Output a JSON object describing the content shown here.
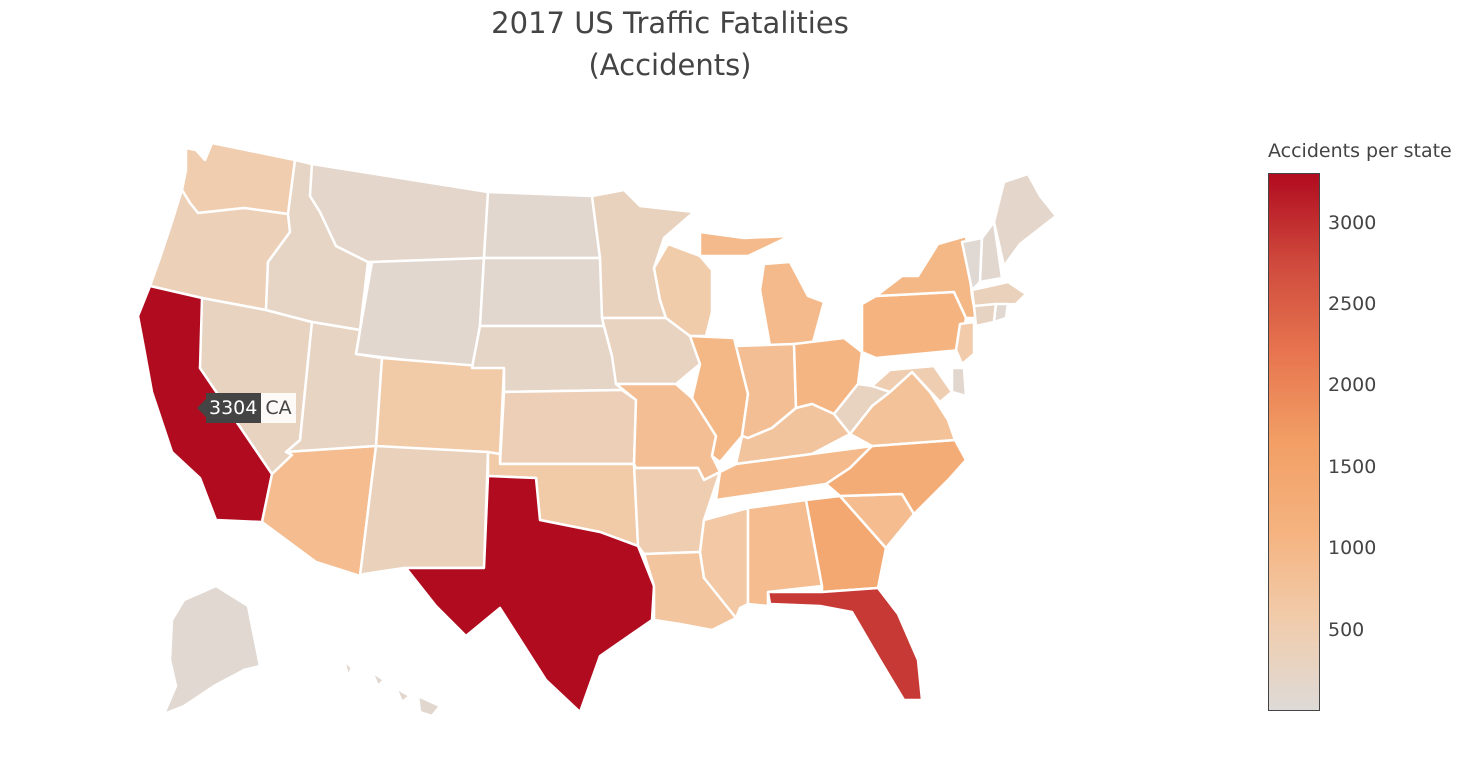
{
  "title": {
    "line1": "2017 US Traffic Fatalities",
    "line2": "(Accidents)"
  },
  "colorbar": {
    "title": "Accidents per state",
    "min": 0,
    "max": 3304,
    "ticks": [
      "500",
      "1000",
      "1500",
      "2000",
      "2500",
      "3000"
    ],
    "colors": [
      "#dedad7",
      "#f1ccac",
      "#f5b37f",
      "#f29f65",
      "#e7754f",
      "#cf4a3d",
      "#b10b1f"
    ]
  },
  "tooltip": {
    "value": "3304",
    "state": "CA"
  },
  "chart_data": {
    "type": "choropleth",
    "title": "2017 US Traffic Fatalities (Accidents)",
    "colorbar_title": "Accidents per state",
    "states": [
      {
        "code": "WA",
        "value": 520
      },
      {
        "code": "OR",
        "value": 400
      },
      {
        "code": "CA",
        "value": 3304
      },
      {
        "code": "NV",
        "value": 280
      },
      {
        "code": "ID",
        "value": 230
      },
      {
        "code": "MT",
        "value": 170
      },
      {
        "code": "WY",
        "value": 110
      },
      {
        "code": "UT",
        "value": 250
      },
      {
        "code": "AZ",
        "value": 900
      },
      {
        "code": "CO",
        "value": 600
      },
      {
        "code": "NM",
        "value": 350
      },
      {
        "code": "ND",
        "value": 110
      },
      {
        "code": "SD",
        "value": 120
      },
      {
        "code": "NE",
        "value": 210
      },
      {
        "code": "KS",
        "value": 420
      },
      {
        "code": "OK",
        "value": 600
      },
      {
        "code": "TX",
        "value": 3300
      },
      {
        "code": "MN",
        "value": 330
      },
      {
        "code": "IA",
        "value": 300
      },
      {
        "code": "MO",
        "value": 850
      },
      {
        "code": "AR",
        "value": 500
      },
      {
        "code": "LA",
        "value": 710
      },
      {
        "code": "WI",
        "value": 560
      },
      {
        "code": "IL",
        "value": 1000
      },
      {
        "code": "MI",
        "value": 950
      },
      {
        "code": "IN",
        "value": 850
      },
      {
        "code": "OH",
        "value": 1050
      },
      {
        "code": "KY",
        "value": 720
      },
      {
        "code": "TN",
        "value": 950
      },
      {
        "code": "MS",
        "value": 640
      },
      {
        "code": "AL",
        "value": 900
      },
      {
        "code": "GA",
        "value": 1400
      },
      {
        "code": "FL",
        "value": 2900
      },
      {
        "code": "SC",
        "value": 900
      },
      {
        "code": "NC",
        "value": 1300
      },
      {
        "code": "VA",
        "value": 780
      },
      {
        "code": "WV",
        "value": 280
      },
      {
        "code": "PA",
        "value": 1100
      },
      {
        "code": "NY",
        "value": 1000
      },
      {
        "code": "VT",
        "value": 60
      },
      {
        "code": "NH",
        "value": 100
      },
      {
        "code": "ME",
        "value": 160
      },
      {
        "code": "MA",
        "value": 340
      },
      {
        "code": "CT",
        "value": 270
      },
      {
        "code": "RI",
        "value": 80
      },
      {
        "code": "NJ",
        "value": 570
      },
      {
        "code": "DE",
        "value": 110
      },
      {
        "code": "MD",
        "value": 500
      },
      {
        "code": "AK",
        "value": 75
      },
      {
        "code": "HI",
        "value": 100
      }
    ]
  }
}
